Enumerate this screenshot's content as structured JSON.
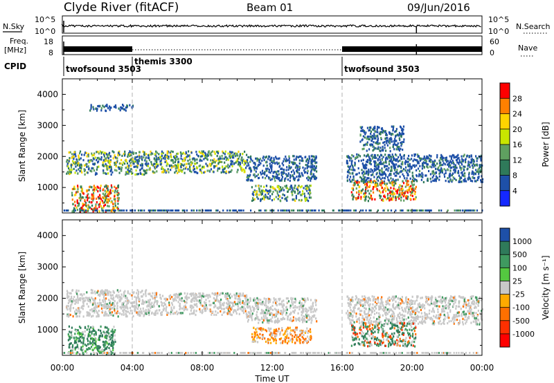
{
  "header": {
    "station": "Clyde River (fitACF)",
    "beam": "Beam 01",
    "date": "09/Jun/2016"
  },
  "top_panels": {
    "nsky": {
      "left_label": "N.Sky",
      "left_ticks": [
        "10^5",
        "10^0"
      ],
      "right_ticks": [
        "10^5",
        "10^0"
      ],
      "right_label": "N.Search",
      "right_style": "dotted"
    },
    "freq": {
      "left_label_1": "Freq.",
      "left_label_2": "[MHz]",
      "left_ticks": [
        "18",
        "8"
      ],
      "right_ticks": [
        "60",
        "0"
      ],
      "right_label": "Nave",
      "right_style": "dotted"
    },
    "cpid": {
      "label": "CPID",
      "segments": [
        {
          "name": "twofsound 3503",
          "start_hour": 0,
          "end_hour": 4
        },
        {
          "name": "themis 3300",
          "start_hour": 4,
          "end_hour": 16
        },
        {
          "name": "twofsound 3503",
          "start_hour": 16,
          "end_hour": 24
        }
      ]
    }
  },
  "chart_data": [
    {
      "type": "heatmap",
      "title": "Power",
      "ylabel": "Slant Range [km]",
      "ylim": [
        180,
        4500
      ],
      "yticks": [
        1000,
        2000,
        3000,
        4000
      ],
      "xlim": [
        0,
        24
      ],
      "colorbar": {
        "label": "Power [dB]",
        "ticks": [
          "28",
          "24",
          "20",
          "16",
          "12",
          "8",
          "4"
        ],
        "colors": [
          "#ff0000",
          "#ff8000",
          "#ffd400",
          "#c8e600",
          "#5fa060",
          "#2f7a5a",
          "#1e50a8",
          "#1428ff"
        ]
      },
      "regions": [
        {
          "x": [
            0.2,
            4.8
          ],
          "y": [
            1450,
            2200
          ],
          "level": "medium"
        },
        {
          "x": [
            4.8,
            10.5
          ],
          "y": [
            1500,
            2200
          ],
          "level": "medium"
        },
        {
          "x": [
            10.5,
            14.5
          ],
          "y": [
            1250,
            2050
          ],
          "level": "low"
        },
        {
          "x": [
            16.2,
            24
          ],
          "y": [
            1200,
            2100
          ],
          "level": "low"
        },
        {
          "x": [
            0.5,
            3.2
          ],
          "y": [
            250,
            1100
          ],
          "level": "high"
        },
        {
          "x": [
            10.8,
            14.2
          ],
          "y": [
            600,
            1100
          ],
          "level": "medium"
        },
        {
          "x": [
            16.5,
            20.2
          ],
          "y": [
            600,
            1250
          ],
          "level": "high"
        },
        {
          "x": [
            1.5,
            4.0
          ],
          "y": [
            3500,
            3700
          ],
          "level": "low"
        },
        {
          "x": [
            17.0,
            19.5
          ],
          "y": [
            2200,
            3000
          ],
          "level": "low"
        }
      ]
    },
    {
      "type": "heatmap",
      "title": "Velocity",
      "ylabel": "Slant Range [km]",
      "xlabel": "Time UT",
      "ylim": [
        180,
        4500
      ],
      "yticks": [
        1000,
        2000,
        3000,
        4000
      ],
      "xlim": [
        0,
        24
      ],
      "xticks": [
        "00:00",
        "04:00",
        "08:00",
        "12:00",
        "16:00",
        "20:00",
        "00:00"
      ],
      "colorbar": {
        "label": "Velocity [m s⁻¹]",
        "ticks": [
          "1000",
          "500",
          "100",
          "25",
          "-25",
          "-100",
          "-500",
          "-1000"
        ],
        "colors": [
          "#1e50a8",
          "#2f7a5a",
          "#3f9a60",
          "#54c840",
          "#c8c8c8",
          "#ffaa00",
          "#ff7000",
          "#ff3000",
          "#ff0000"
        ]
      },
      "regions": [
        {
          "x": [
            0.2,
            4.8
          ],
          "y": [
            1450,
            2300
          ],
          "level": "low"
        },
        {
          "x": [
            4.8,
            10.5
          ],
          "y": [
            1500,
            2200
          ],
          "level": "low"
        },
        {
          "x": [
            10.5,
            14.5
          ],
          "y": [
            1250,
            2050
          ],
          "level": "low"
        },
        {
          "x": [
            16.2,
            24
          ],
          "y": [
            1200,
            2100
          ],
          "level": "low"
        },
        {
          "x": [
            0.3,
            3.0
          ],
          "y": [
            250,
            1150
          ],
          "level": "positive"
        },
        {
          "x": [
            10.8,
            14.2
          ],
          "y": [
            600,
            1100
          ],
          "level": "negative"
        },
        {
          "x": [
            16.5,
            20.2
          ],
          "y": [
            500,
            1250
          ],
          "level": "mixed"
        }
      ]
    }
  ]
}
